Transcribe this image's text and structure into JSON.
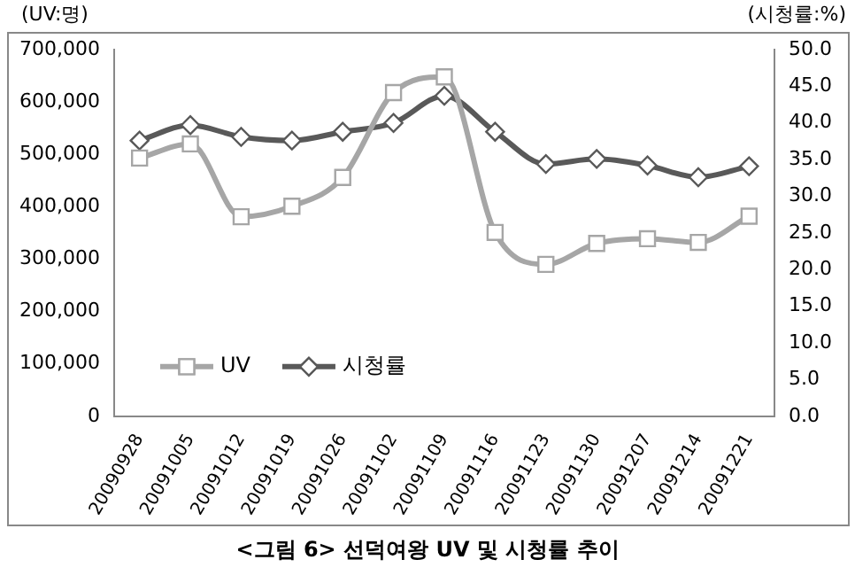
{
  "chart_data": {
    "type": "line",
    "title": "<그림 6> 선덕여왕 UV 및 시청률 추이",
    "ylabel": "(UV:명)",
    "y2label": "(시청률:%)",
    "categories": [
      "20090928",
      "20091005",
      "20091012",
      "20091019",
      "20091026",
      "20091102",
      "20091109",
      "20091116",
      "20091123",
      "20091130",
      "20091207",
      "20091214",
      "20091221"
    ],
    "series": [
      {
        "name": "UV",
        "color": "#a6a6a6",
        "marker": "square",
        "values": [
          493000,
          520000,
          381000,
          401000,
          456000,
          618000,
          648000,
          351000,
          290000,
          330000,
          339000,
          332000,
          382000
        ]
      },
      {
        "name": "시청률",
        "color": "#595959",
        "marker": "diamond",
        "axis": "y2",
        "values": [
          37.6,
          39.7,
          38.1,
          37.6,
          38.8,
          40.0,
          43.7,
          38.8,
          34.4,
          35.1,
          34.2,
          32.6,
          34.1
        ]
      }
    ],
    "ylim": [
      0,
      700000
    ],
    "yticks": [
      {
        "value": 0,
        "label": "0"
      },
      {
        "value": 100000,
        "label": "100,000"
      },
      {
        "value": 200000,
        "label": "200,000"
      },
      {
        "value": 300000,
        "label": "300,000"
      },
      {
        "value": 400000,
        "label": "400,000"
      },
      {
        "value": 500000,
        "label": "500,000"
      },
      {
        "value": 600000,
        "label": "600,000"
      },
      {
        "value": 700000,
        "label": "700,000"
      }
    ],
    "y2lim": [
      0,
      50
    ],
    "y2ticks": [
      {
        "value": 0,
        "label": "0.0"
      },
      {
        "value": 5,
        "label": "5.0"
      },
      {
        "value": 10,
        "label": "10.0"
      },
      {
        "value": 15,
        "label": "15.0"
      },
      {
        "value": 20,
        "label": "20.0"
      },
      {
        "value": 25,
        "label": "25.0"
      },
      {
        "value": 30,
        "label": "30.0"
      },
      {
        "value": 35,
        "label": "35.0"
      },
      {
        "value": 40,
        "label": "40.0"
      },
      {
        "value": 45,
        "label": "45.0"
      },
      {
        "value": 50,
        "label": "50.0"
      }
    ],
    "grid": false,
    "legend": "bottom left"
  }
}
